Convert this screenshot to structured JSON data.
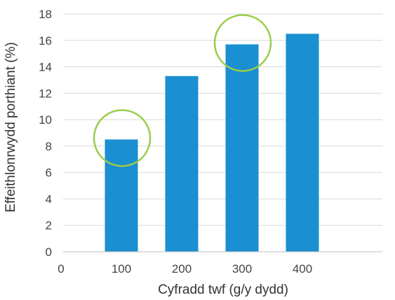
{
  "chart_data": {
    "type": "bar",
    "title": "",
    "xlabel": "Cyfradd twf (g/y dydd)",
    "ylabel": "Effeithlonrwydd porthiant (%)",
    "x_tick_labels": [
      "0",
      "100",
      "200",
      "300",
      "400"
    ],
    "categories": [
      "100",
      "200",
      "300",
      "400"
    ],
    "values": [
      8.5,
      13.3,
      15.7,
      16.5
    ],
    "y_ticks": [
      "0",
      "2",
      "4",
      "6",
      "8",
      "10",
      "12",
      "14",
      "16",
      "18"
    ],
    "ylim": [
      0,
      18
    ],
    "xlim": [
      0,
      400
    ],
    "grid": true,
    "legend": "none",
    "highlighted_categories": [
      "100",
      "300"
    ],
    "colors": {
      "bar": "#1a8fd1",
      "highlight_circle": "#9acd4a",
      "grid": "#d9d9d9",
      "baseline": "#bfbfbf"
    }
  }
}
